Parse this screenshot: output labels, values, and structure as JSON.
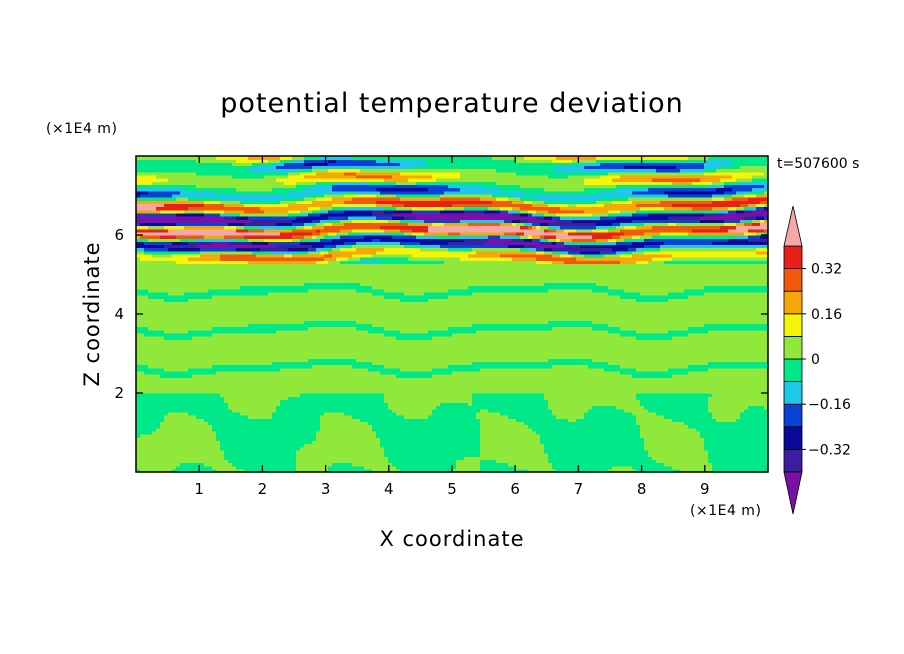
{
  "chart_data": {
    "type": "heatmap",
    "title": "potential temperature deviation",
    "xlabel": "X coordinate",
    "ylabel": "Z coordinate",
    "x_unit": "(×1E4 m)",
    "y_unit": "(×1E4 m)",
    "time_label": "t=507600 s",
    "xlim": [
      0,
      10
    ],
    "ylim": [
      0,
      8
    ],
    "x_ticks": [
      1,
      2,
      3,
      4,
      5,
      6,
      7,
      8,
      9
    ],
    "y_ticks": [
      2,
      4,
      6
    ],
    "colorbar": {
      "levels": [
        -0.4,
        -0.32,
        -0.24,
        -0.16,
        -0.08,
        0,
        0.08,
        0.16,
        0.24,
        0.32,
        0.4
      ],
      "labeled_levels": [
        "0.32",
        "0.16",
        "0",
        "−0.16",
        "−0.32"
      ],
      "colors": [
        "#3a1f9e",
        "#0a0a9a",
        "#0b42d6",
        "#1dc8e8",
        "#00e887",
        "#8fe83a",
        "#f5f50a",
        "#f5a80a",
        "#f05a0a",
        "#e8201a"
      ],
      "under_color": "#7a10a8",
      "over_color": "#f5a8a8"
    },
    "fields": {
      "lower_region": "z 0–2: near-zero values (−0.08 to 0.08) in cellular pattern",
      "middle_region": "z 2–5: mostly 0 to 0.08 bands",
      "upper_region": "z 5.5–8: strong alternating bands from −0.4 to 0.4"
    }
  }
}
